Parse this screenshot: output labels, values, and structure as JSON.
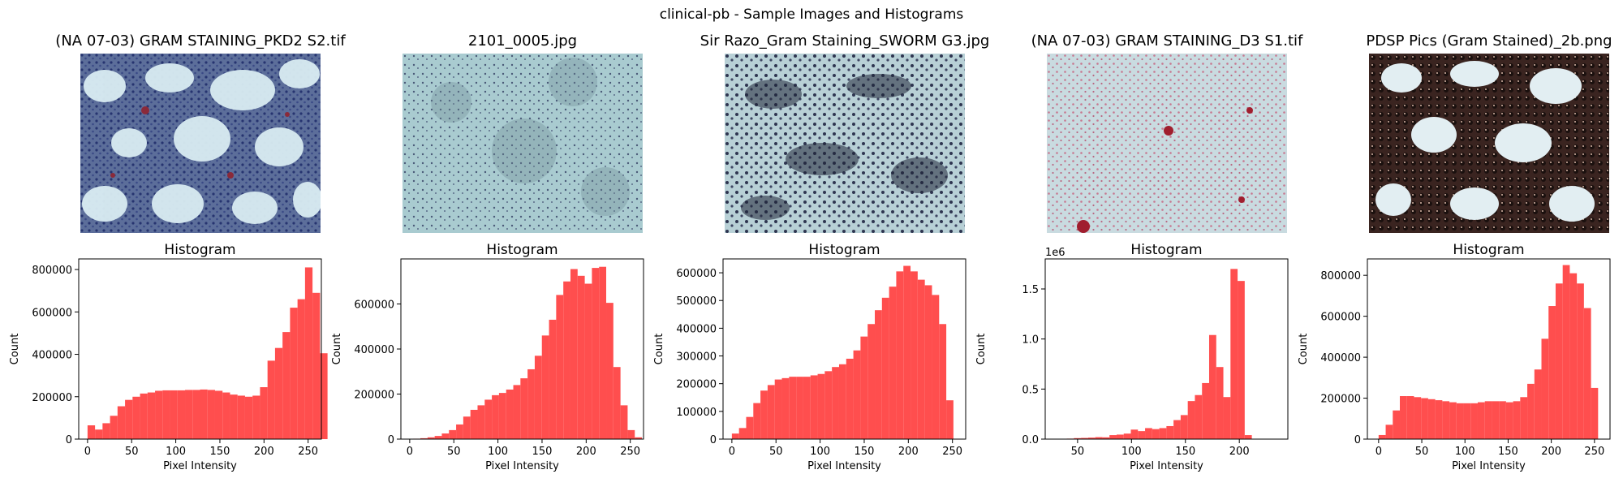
{
  "figure_title": "clinical-pb - Sample Images and Histograms",
  "colors": {
    "bar": "#ff4a4a",
    "axis": "#000000"
  },
  "chart_data": [
    {
      "type": "bar",
      "image_title": "(NA 07-03) GRAM STAINING_PKD2 S2.tif",
      "title": "Histogram",
      "xlabel": "Pixel Intensity",
      "ylabel": "Count",
      "xlim": [
        -10,
        265
      ],
      "ylim": [
        0,
        850000
      ],
      "bin_start": 0,
      "bin_width": 8.5,
      "values": [
        65000,
        45000,
        75000,
        110000,
        155000,
        185000,
        200000,
        215000,
        220000,
        228000,
        230000,
        230000,
        230000,
        232000,
        232000,
        234000,
        232000,
        228000,
        220000,
        210000,
        205000,
        200000,
        205000,
        245000,
        370000,
        430000,
        505000,
        620000,
        660000,
        810000,
        690000,
        405000
      ],
      "xticks": [
        0,
        50,
        100,
        150,
        200,
        250
      ],
      "yticks": [
        0,
        200000,
        400000,
        600000,
        800000
      ],
      "ytick_labels": [
        "0",
        "200000",
        "400000",
        "600000",
        "800000"
      ],
      "offset_label": ""
    },
    {
      "type": "bar",
      "image_title": "2101_0005.jpg",
      "title": "Histogram",
      "xlabel": "Pixel Intensity",
      "ylabel": "Count",
      "xlim": [
        -10,
        265
      ],
      "ylim": [
        0,
        800000
      ],
      "bin_start": 4,
      "bin_width": 8.1,
      "values": [
        2000,
        4000,
        8000,
        14000,
        25000,
        40000,
        65000,
        100000,
        130000,
        150000,
        175000,
        195000,
        205000,
        220000,
        240000,
        270000,
        310000,
        370000,
        460000,
        530000,
        640000,
        700000,
        755000,
        725000,
        690000,
        760000,
        765000,
        605000,
        320000,
        150000,
        40000,
        8000
      ],
      "xticks": [
        0,
        50,
        100,
        150,
        200,
        250
      ],
      "yticks": [
        0,
        200000,
        400000,
        600000
      ],
      "ytick_labels": [
        "0",
        "200000",
        "400000",
        "600000"
      ],
      "offset_label": ""
    },
    {
      "type": "bar",
      "image_title": "Sir Razo_Gram Staining_SWORM G3.jpg",
      "title": "Histogram",
      "xlabel": "Pixel Intensity",
      "ylabel": "Count",
      "xlim": [
        -10,
        265
      ],
      "ylim": [
        0,
        650000
      ],
      "bin_start": 0,
      "bin_width": 8.1,
      "values": [
        20000,
        40000,
        80000,
        130000,
        175000,
        195000,
        215000,
        220000,
        225000,
        225000,
        225000,
        230000,
        235000,
        245000,
        260000,
        270000,
        290000,
        320000,
        370000,
        415000,
        465000,
        510000,
        550000,
        605000,
        625000,
        605000,
        575000,
        555000,
        520000,
        415000,
        140000
      ],
      "xticks": [
        0,
        50,
        100,
        150,
        200,
        250
      ],
      "yticks": [
        0,
        100000,
        200000,
        300000,
        400000,
        500000,
        600000
      ],
      "ytick_labels": [
        "0",
        "100000",
        "200000",
        "300000",
        "400000",
        "500000",
        "600000"
      ],
      "offset_label": ""
    },
    {
      "type": "bar",
      "image_title": "(NA 07-03) GRAM STAINING_D3 S1.tif",
      "title": "Histogram",
      "xlabel": "Pixel Intensity",
      "ylabel": "Count",
      "xlim": [
        20,
        245
      ],
      "ylim": [
        0,
        1800000
      ],
      "bin_start": 40,
      "bin_width": 6.6,
      "values": [
        5000,
        10000,
        12000,
        15000,
        20000,
        18000,
        40000,
        45000,
        55000,
        95000,
        80000,
        110000,
        100000,
        110000,
        130000,
        190000,
        240000,
        380000,
        440000,
        560000,
        1040000,
        720000,
        420000,
        1700000,
        1580000,
        40000
      ],
      "xticks": [
        50,
        100,
        150,
        200
      ],
      "yticks": [
        0,
        500000,
        1000000,
        1500000
      ],
      "ytick_labels": [
        "0.0",
        "0.5",
        "1.0",
        "1.5"
      ],
      "offset_label": "1e6"
    },
    {
      "type": "bar",
      "image_title": "PDSP Pics (Gram Stained)_2b.png",
      "title": "Histogram",
      "xlabel": "Pixel Intensity",
      "ylabel": "Count",
      "xlim": [
        -13,
        268
      ],
      "ylim": [
        0,
        880000
      ],
      "bin_start": 0,
      "bin_width": 8.2,
      "values": [
        20000,
        70000,
        140000,
        210000,
        210000,
        205000,
        200000,
        195000,
        190000,
        185000,
        180000,
        175000,
        175000,
        175000,
        180000,
        185000,
        185000,
        185000,
        180000,
        185000,
        205000,
        270000,
        340000,
        490000,
        650000,
        760000,
        850000,
        810000,
        760000,
        640000,
        250000
      ],
      "xticks": [
        0,
        50,
        100,
        150,
        200,
        250
      ],
      "yticks": [
        0,
        200000,
        400000,
        600000,
        800000
      ],
      "ytick_labels": [
        "0",
        "200000",
        "400000",
        "600000",
        "800000"
      ],
      "offset_label": ""
    }
  ]
}
